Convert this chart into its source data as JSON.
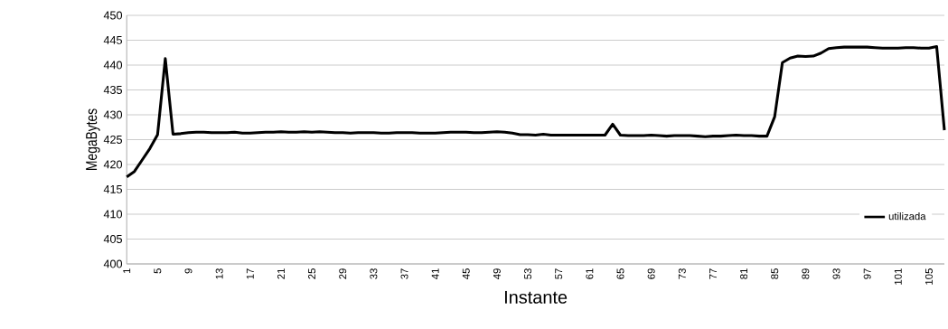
{
  "chart_data": {
    "type": "line",
    "xlabel": "Instante",
    "ylabel": "MegaBytes",
    "categories": [
      "1",
      null,
      null,
      null,
      "5",
      null,
      null,
      null,
      "9",
      null,
      null,
      null,
      "13",
      null,
      null,
      null,
      "17",
      null,
      null,
      null,
      "21",
      null,
      null,
      null,
      "25",
      null,
      null,
      null,
      "29",
      null,
      null,
      null,
      "33",
      null,
      null,
      null,
      "37",
      null,
      null,
      null,
      "41",
      null,
      null,
      null,
      "45",
      null,
      null,
      null,
      "49",
      null,
      null,
      null,
      "53",
      null,
      null,
      null,
      "57",
      null,
      null,
      null,
      "61",
      null,
      null,
      null,
      "65",
      null,
      null,
      null,
      "69",
      null,
      null,
      null,
      "73",
      null,
      null,
      null,
      "77",
      null,
      null,
      null,
      "81",
      null,
      null,
      null,
      "85",
      null,
      null,
      null,
      "89",
      null,
      null,
      null,
      "93",
      null,
      null,
      null,
      "97",
      null,
      null,
      null,
      "101",
      null,
      null,
      null,
      "105",
      null,
      null
    ],
    "series": [
      {
        "name": "utilizada",
        "color": "#000000",
        "values": [
          417.5,
          418.6,
          420.9,
          423.2,
          426.0,
          441.3,
          426.1,
          426.2,
          426.4,
          426.5,
          426.5,
          426.4,
          426.4,
          426.4,
          426.5,
          426.3,
          426.3,
          426.4,
          426.5,
          426.5,
          426.6,
          426.5,
          426.5,
          426.6,
          426.5,
          426.6,
          426.5,
          426.4,
          426.4,
          426.3,
          426.4,
          426.4,
          426.4,
          426.3,
          426.3,
          426.4,
          426.4,
          426.4,
          426.3,
          426.3,
          426.3,
          426.4,
          426.5,
          426.5,
          426.5,
          426.4,
          426.4,
          426.5,
          426.6,
          426.5,
          426.3,
          426.0,
          426.0,
          425.9,
          426.1,
          425.9,
          425.9,
          425.9,
          425.9,
          425.9,
          425.9,
          425.9,
          425.9,
          428.1,
          425.9,
          425.8,
          425.8,
          425.8,
          425.9,
          425.8,
          425.7,
          425.8,
          425.8,
          425.8,
          425.7,
          425.6,
          425.7,
          425.7,
          425.8,
          425.9,
          425.8,
          425.8,
          425.7,
          425.7,
          429.6,
          440.5,
          441.4,
          441.8,
          441.7,
          441.8,
          442.4,
          443.3,
          443.5,
          443.6,
          443.6,
          443.6,
          443.6,
          443.5,
          443.4,
          443.4,
          443.4,
          443.5,
          443.5,
          443.4,
          443.4,
          443.7,
          426.9
        ]
      }
    ],
    "ylim": [
      400,
      450
    ],
    "yticks": [
      400,
      405,
      410,
      415,
      420,
      425,
      430,
      435,
      440,
      445,
      450
    ],
    "grid": "y",
    "legend": "bottom right",
    "marker": "none",
    "line_style": "solid"
  }
}
